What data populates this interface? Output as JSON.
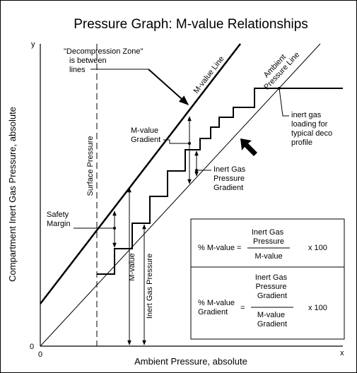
{
  "title": "Pressure Graph:   M-value Relationships",
  "axes": {
    "y_label": "Compartment Inert Gas Pressure, absolute",
    "x_label": "Ambient Pressure, absolute",
    "y_end": "y",
    "x_end": "x",
    "origin_y": "0",
    "origin_x": "0"
  },
  "lines": {
    "m_value": "M-value Line",
    "ambient": [
      "Ambient",
      "Pressure Line"
    ],
    "surface": "Surface Pressure"
  },
  "annotations": {
    "zone": [
      "\"Decompression Zone\"",
      "is between",
      "lines"
    ],
    "m_value_gradient": [
      "M-value",
      "Gradient"
    ],
    "inert_gas_pressure_gradient": [
      "Inert Gas",
      "Pressure",
      "Gradient"
    ],
    "safety_margin": [
      "Safety",
      "Margin"
    ],
    "loading": [
      "inert gas",
      "loading for",
      "typical deco",
      "profile"
    ],
    "m_value": "M-value",
    "inert_gas_pressure": "Inert Gas Pressure"
  },
  "formulas": [
    {
      "lhs": [
        "% M-value ="
      ],
      "numerator": [
        "Inert Gas",
        "Pressure"
      ],
      "denominator": [
        "M-value"
      ],
      "factor": "x 100"
    },
    {
      "lhs": [
        "% M-value",
        "Gradient"
      ],
      "equals": "=",
      "numerator": [
        "Inert Gas",
        "Pressure",
        "Gradient"
      ],
      "denominator": [
        "M-value",
        "Gradient"
      ],
      "factor": "x 100"
    }
  ]
}
